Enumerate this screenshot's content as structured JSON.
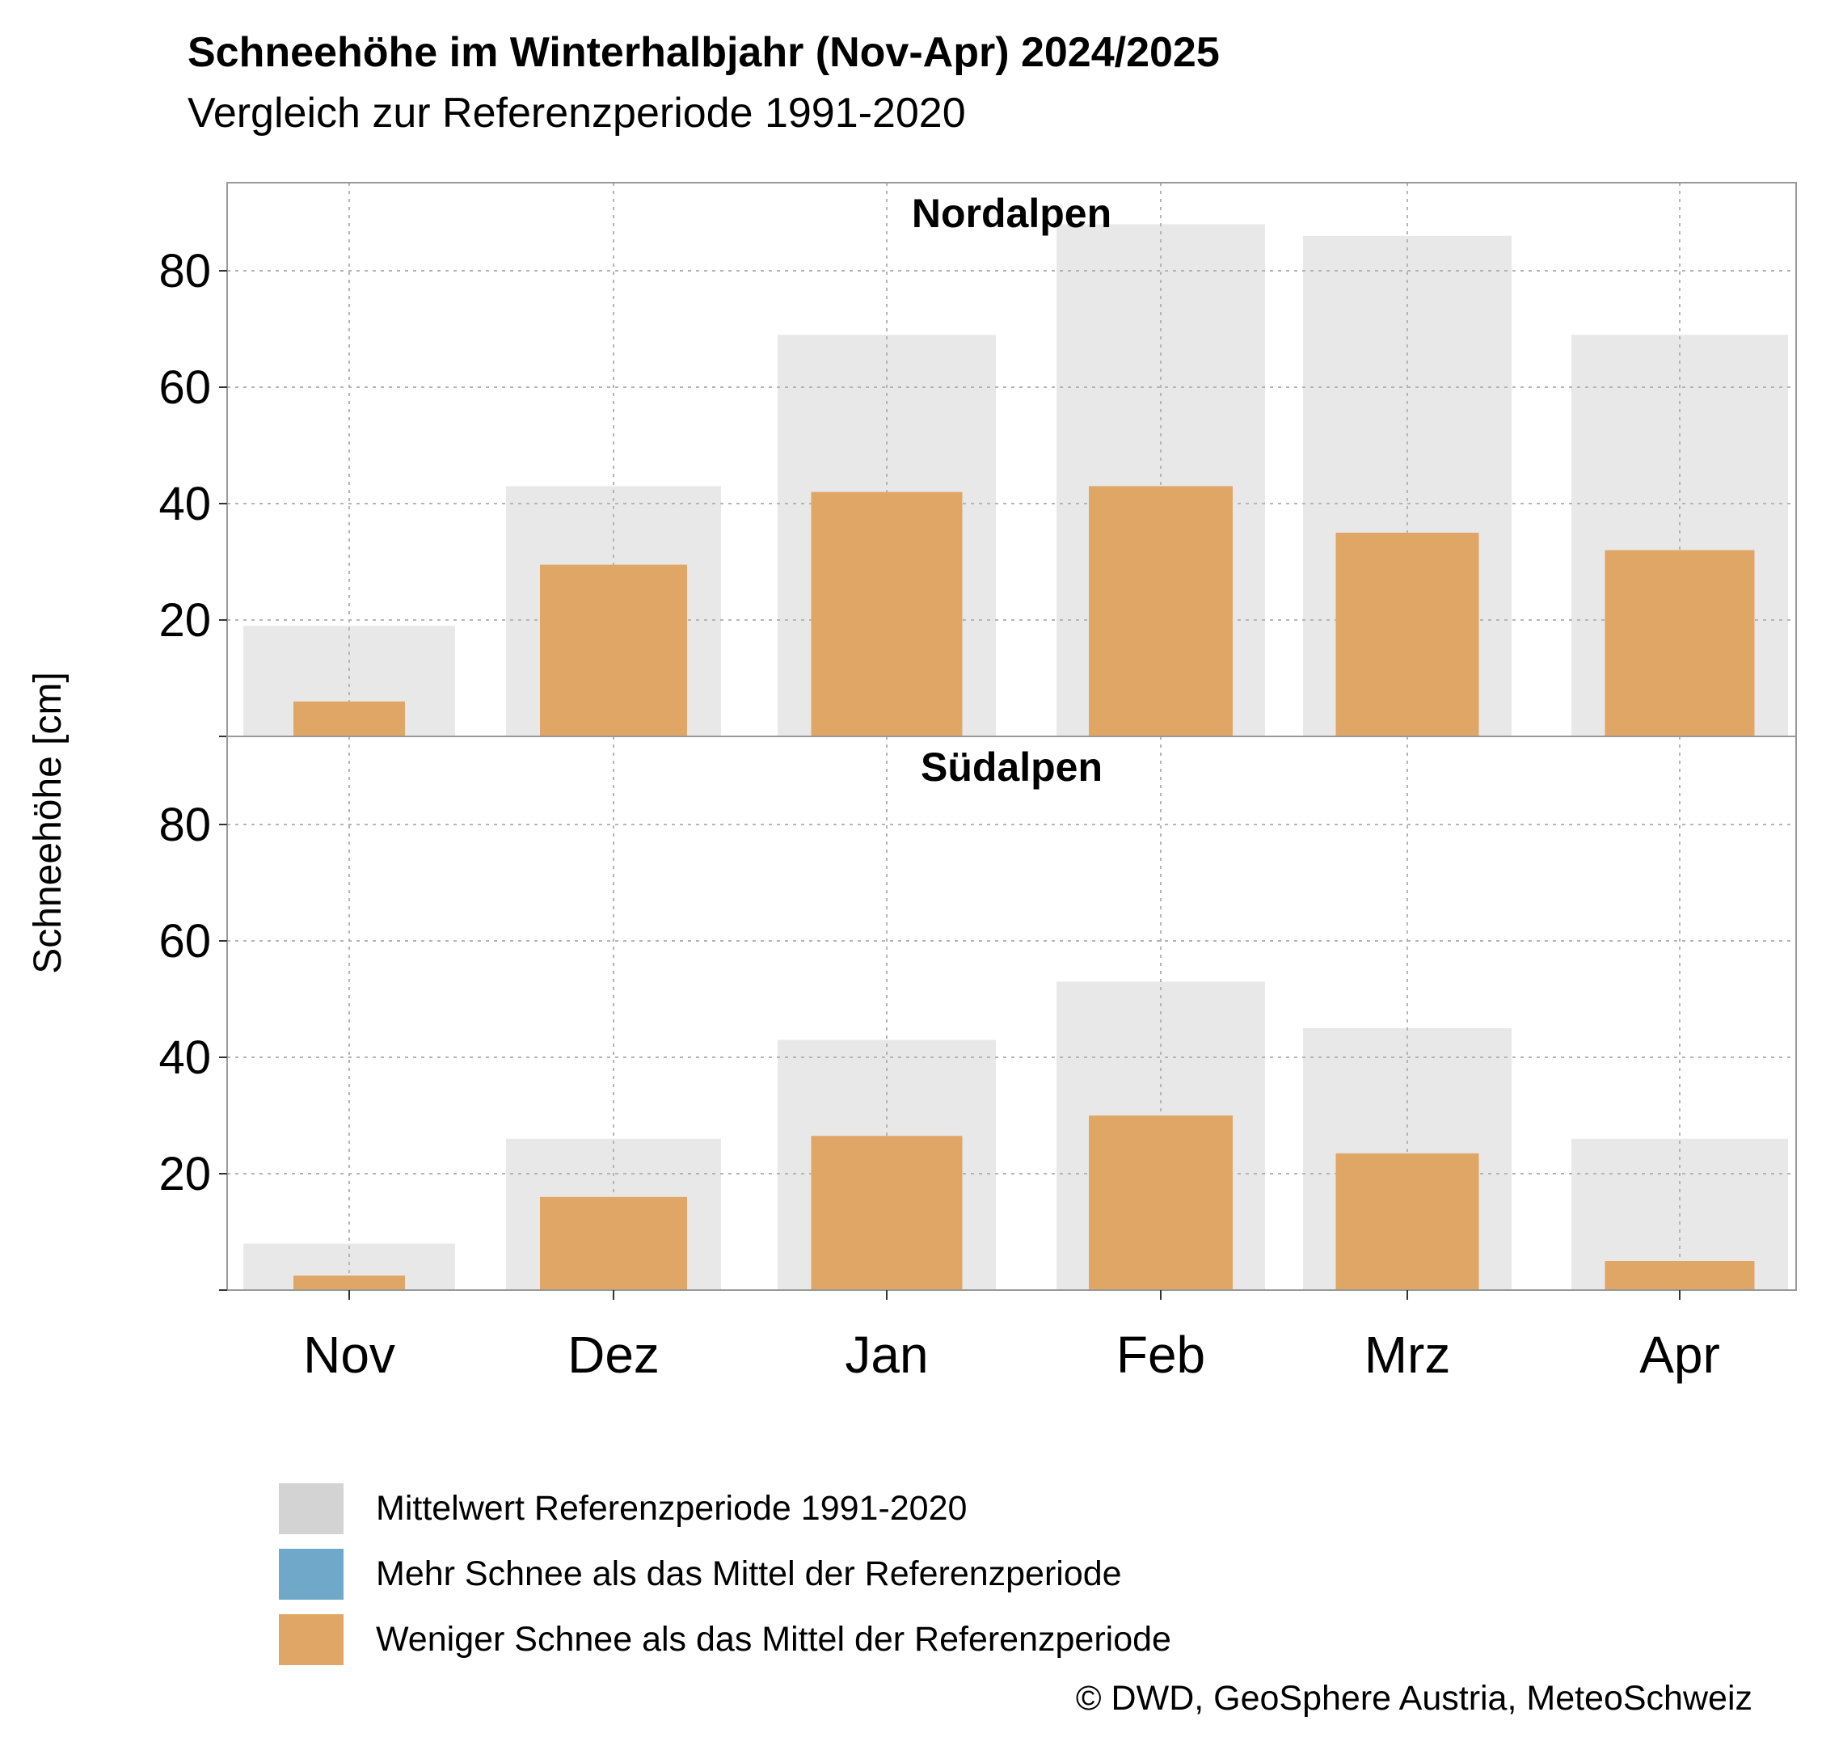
{
  "chart_data": {
    "type": "bar",
    "title": "Schneehöhe im Winterhalbjahr (Nov-Apr) 2024/2025",
    "subtitle": "Vergleich zur Referenzperiode 1991-2020",
    "ylabel": "Schneehöhe [cm]",
    "xlabel": "",
    "categories": [
      "Nov",
      "Dez",
      "Jan",
      "Feb",
      "Mrz",
      "Apr"
    ],
    "y_ticks": [
      20,
      40,
      60,
      80
    ],
    "ylim": [
      0,
      95
    ],
    "grid": true,
    "legend_position": "bottom-left",
    "legend": [
      {
        "label": "Mittelwert Referenzperiode 1991-2020",
        "color": "#d3d3d3"
      },
      {
        "label": "Mehr Schnee als das Mittel der Referenzperiode",
        "color": "#6fa8c8"
      },
      {
        "label": "Weniger Schnee als das Mittel der Referenzperiode",
        "color": "#e0a665"
      }
    ],
    "colors": {
      "reference": "#e8e8e8",
      "more": "#6fa8c8",
      "less": "#e0a665"
    },
    "panels": [
      {
        "name": "Nordalpen",
        "reference": [
          19,
          43,
          69,
          88,
          86,
          69
        ],
        "values": [
          6,
          29.5,
          42,
          43,
          35,
          32
        ]
      },
      {
        "name": "Südalpen",
        "reference": [
          8,
          26,
          43,
          53,
          45,
          26
        ],
        "values": [
          2.5,
          16,
          26.5,
          30,
          23.5,
          5
        ]
      }
    ]
  },
  "source": "© DWD, GeoSphere Austria, MeteoSchweiz"
}
